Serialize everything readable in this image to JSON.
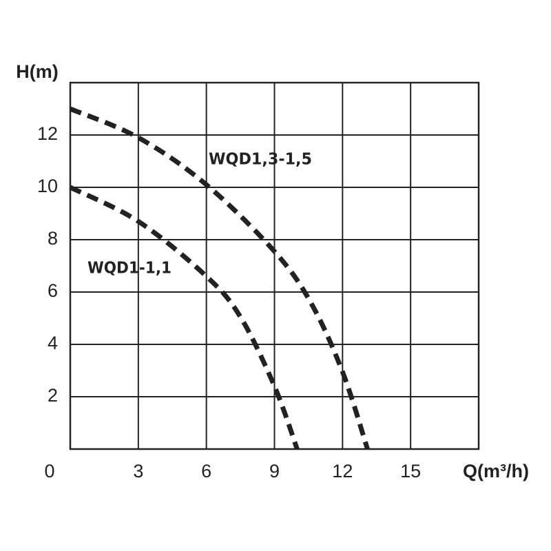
{
  "chart_data": {
    "type": "line",
    "x_label": "Q(m³/h)",
    "y_label": "H(m)",
    "xlim": [
      0,
      18
    ],
    "ylim": [
      0,
      14
    ],
    "xticks": [
      3,
      6,
      9,
      12,
      15
    ],
    "yticks": [
      0,
      2,
      4,
      6,
      8,
      10,
      12
    ],
    "grid": true,
    "series": [
      {
        "name": "WQD1,3-1,5",
        "color": "#222222",
        "x": [
          0,
          3,
          6,
          9,
          10.6,
          12,
          13.1
        ],
        "values": [
          13,
          11.9,
          10.1,
          7.55,
          5.6,
          2.95,
          0
        ]
      },
      {
        "name": "WQD1-1,1",
        "color": "#222222",
        "x": [
          0,
          3,
          6,
          7.5,
          9,
          10
        ],
        "values": [
          10,
          8.7,
          6.6,
          5.05,
          2.4,
          0
        ]
      }
    ]
  }
}
